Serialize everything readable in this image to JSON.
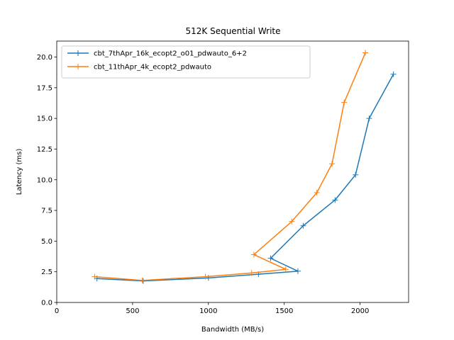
{
  "chart_data": {
    "type": "line",
    "title": "512K  Sequential Write",
    "xlabel": "Bandwidth (MB/s)",
    "ylabel": "Latency (ms)",
    "xlim": [
      0,
      2320
    ],
    "ylim": [
      0,
      21.3
    ],
    "x_ticks": [
      0,
      500,
      1000,
      1500,
      2000
    ],
    "y_ticks": [
      0.0,
      2.5,
      5.0,
      7.5,
      10.0,
      12.5,
      15.0,
      17.5,
      20.0
    ],
    "x_tick_labels": [
      "0",
      "500",
      "1000",
      "1500",
      "2000"
    ],
    "y_tick_labels": [
      "0.0",
      "2.5",
      "5.0",
      "7.5",
      "10.0",
      "12.5",
      "15.0",
      "17.5",
      "20.0"
    ],
    "legend_position": "upper-left",
    "marker": "plus",
    "grid": false,
    "series": [
      {
        "name": "cbt_7thApr_16k_ecopt2_o01_pdwauto_6+2",
        "color": "#1f77b4",
        "x": [
          265,
          570,
          1000,
          1330,
          1590,
          1410,
          1625,
          1835,
          1970,
          2060,
          2220
        ],
        "y": [
          1.95,
          1.75,
          2.0,
          2.3,
          2.55,
          3.6,
          6.25,
          8.35,
          10.4,
          15.0,
          18.6
        ]
      },
      {
        "name": "cbt_11thApr_4k_ecopt2_pdwauto",
        "color": "#ff7f0e",
        "x": [
          250,
          565,
          980,
          1285,
          1510,
          1300,
          1550,
          1715,
          1815,
          1895,
          2035
        ],
        "y": [
          2.1,
          1.8,
          2.1,
          2.4,
          2.7,
          3.9,
          6.6,
          8.95,
          11.3,
          16.3,
          20.35
        ]
      }
    ]
  }
}
